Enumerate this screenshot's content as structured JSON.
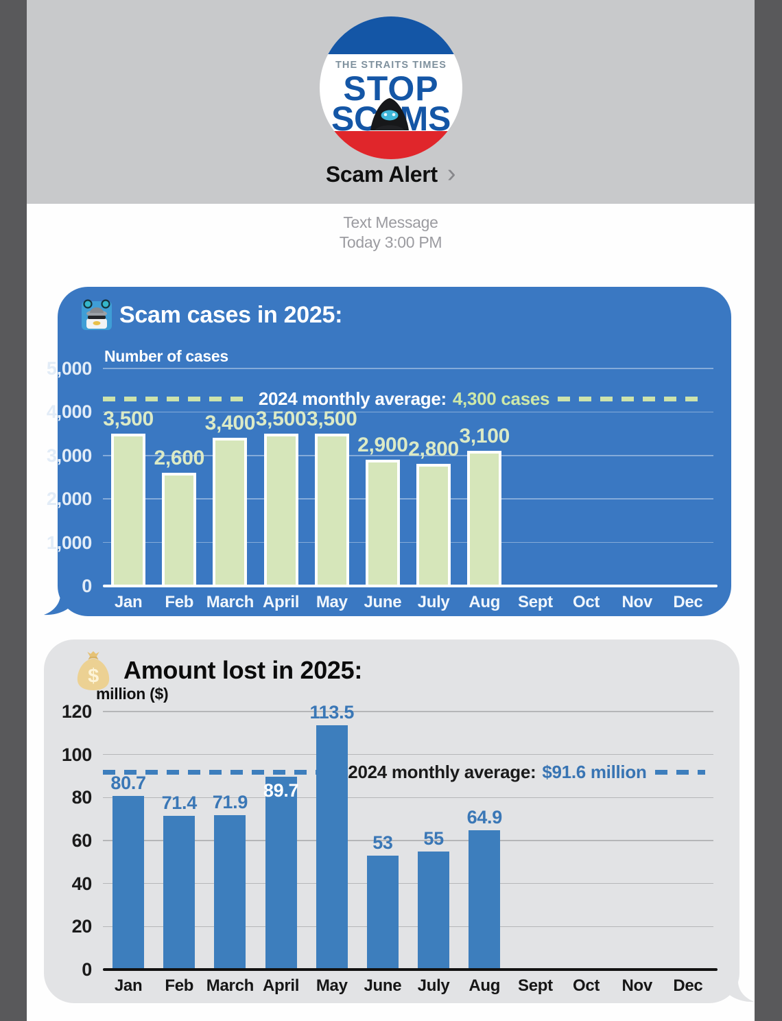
{
  "chrome": {
    "side_strip_color": "#59595b",
    "header_bg": "#c8c9cb",
    "logo": {
      "publisher": "THE STRAITS TIMES",
      "word1": "STOP",
      "word2_left": "SC",
      "word2_right": "MS",
      "blue": "#1456a6",
      "red": "#e0262b",
      "publisher_color": "#7e909d"
    },
    "contact_name": "Scam Alert",
    "chevron": "›",
    "message_type": "Text Message",
    "timestamp": "Today 3:00 PM"
  },
  "chart_data": [
    {
      "type": "bar",
      "title": "Scam cases in 2025:",
      "title_icon": "scammer-icon",
      "ylabel": "Number of cases",
      "ylim": [
        0,
        5000
      ],
      "grid": true,
      "legend_position": "none",
      "yticks": [
        {
          "v": 5000,
          "label": "5,000"
        },
        {
          "v": 4000,
          "label": "4,000"
        },
        {
          "v": 3000,
          "label": "3,000"
        },
        {
          "v": 2000,
          "label": "2,000"
        },
        {
          "v": 1000,
          "label": "1,000"
        },
        {
          "v": 0,
          "label": "0"
        }
      ],
      "categories": [
        "Jan",
        "Feb",
        "March",
        "April",
        "May",
        "June",
        "July",
        "Aug",
        "Sept",
        "Oct",
        "Nov",
        "Dec"
      ],
      "series": [
        {
          "name": "Scam cases 2025",
          "values": [
            3500,
            2600,
            3400,
            3500,
            3500,
            2900,
            2800,
            3100
          ]
        }
      ],
      "values": [
        3500,
        2600,
        3400,
        3500,
        3500,
        2900,
        2800,
        3100
      ],
      "value_labels": [
        "3,500",
        "2,600",
        "3,400",
        "3,500",
        "3,500",
        "2,900",
        "2,800",
        "3,100"
      ],
      "average": {
        "value": 4300,
        "prefix": "2024 monthly average:",
        "highlight": "4,300 cases"
      },
      "style": {
        "bubble_bg": "#3a78c2",
        "bar": "#d6e6ba",
        "bar_border": "#ffffff",
        "value_label": "#dbeac6",
        "tick": "#e2ecf7",
        "month": "#f0f6fc",
        "grid": "rgba(255,255,255,0.38)",
        "axis": "#ffffff",
        "avg_dash": "#cde3ab",
        "avg_text": "#ffffff",
        "avg_highlight": "#cde8a9",
        "title": "#ffffff",
        "ylabel": "#ffffff"
      }
    },
    {
      "type": "bar",
      "title": "Amount lost in 2025:",
      "title_icon": "money-bag-icon",
      "ylabel": "million ($)",
      "ylim": [
        0,
        120
      ],
      "grid": true,
      "legend_position": "none",
      "yticks": [
        {
          "v": 120,
          "label": "120"
        },
        {
          "v": 100,
          "label": "100"
        },
        {
          "v": 80,
          "label": "80"
        },
        {
          "v": 60,
          "label": "60"
        },
        {
          "v": 40,
          "label": "40"
        },
        {
          "v": 20,
          "label": "20"
        },
        {
          "v": 0,
          "label": "0"
        }
      ],
      "categories": [
        "Jan",
        "Feb",
        "March",
        "April",
        "May",
        "June",
        "July",
        "Aug",
        "Sept",
        "Oct",
        "Nov",
        "Dec"
      ],
      "series": [
        {
          "name": "Amount lost 2025 (million $)",
          "values": [
            80.7,
            71.4,
            71.9,
            89.7,
            113.5,
            53,
            55,
            64.9
          ]
        }
      ],
      "values": [
        80.7,
        71.4,
        71.9,
        89.7,
        113.5,
        53,
        55,
        64.9
      ],
      "value_labels": [
        "80.7",
        "71.4",
        "71.9",
        "89.7",
        "113.5",
        "53",
        "55",
        "64.9"
      ],
      "inside_label_indices": [
        3
      ],
      "average": {
        "value": 91.6,
        "prefix": "2024 monthly average:",
        "highlight": "$91.6 million"
      },
      "style": {
        "bubble_bg": "#e2e3e5",
        "bar": "#3d7ebd",
        "bar_border": "none",
        "value_label": "#3a77b6",
        "value_label_inside": "#ffffff",
        "tick": "#1b1b1b",
        "month": "#161616",
        "grid": "#b5b6b8",
        "axis": "#121212",
        "avg_dash": "#3d7ebd",
        "avg_text": "#1a1a1a",
        "avg_highlight": "#3874b3",
        "title": "#0b0b0b",
        "ylabel": "#111111"
      }
    }
  ]
}
